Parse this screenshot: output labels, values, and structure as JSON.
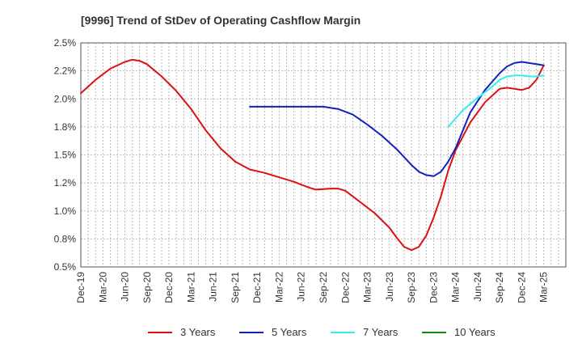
{
  "chart_data": {
    "type": "line",
    "title": "[9996]  Trend of StDev of Operating Cashflow Margin",
    "xlabel": "",
    "ylabel": "",
    "ylim": [
      0.5,
      2.5
    ],
    "yticks": [
      "0.5%",
      "0.8%",
      "1.0%",
      "1.2%",
      "1.5%",
      "1.8%",
      "2.0%",
      "2.2%",
      "2.5%"
    ],
    "ytick_values": [
      0.5,
      0.75,
      1.0,
      1.25,
      1.5,
      1.75,
      2.0,
      2.25,
      2.5
    ],
    "categories": [
      "Dec-19",
      "Mar-20",
      "Jun-20",
      "Sep-20",
      "Dec-20",
      "Mar-21",
      "Jun-21",
      "Sep-21",
      "Dec-21",
      "Mar-22",
      "Jun-22",
      "Sep-22",
      "Dec-22",
      "Mar-23",
      "Jun-23",
      "Sep-23",
      "Dec-23",
      "Mar-24",
      "Jun-24",
      "Sep-24",
      "Dec-24",
      "Mar-25"
    ],
    "x_range": [
      0,
      66
    ],
    "grid": true,
    "legend_position": "bottom",
    "series": [
      {
        "name": "3 Years",
        "color": "#dd1111",
        "points": [
          [
            0,
            2.05
          ],
          [
            2,
            2.17
          ],
          [
            4,
            2.27
          ],
          [
            6,
            2.33
          ],
          [
            7,
            2.35
          ],
          [
            8,
            2.34
          ],
          [
            9,
            2.31
          ],
          [
            11,
            2.2
          ],
          [
            13,
            2.07
          ],
          [
            15,
            1.91
          ],
          [
            17,
            1.72
          ],
          [
            19,
            1.56
          ],
          [
            21,
            1.44
          ],
          [
            23,
            1.37
          ],
          [
            25,
            1.34
          ],
          [
            27,
            1.3
          ],
          [
            29,
            1.26
          ],
          [
            31,
            1.21
          ],
          [
            32,
            1.19
          ],
          [
            34,
            1.2
          ],
          [
            35,
            1.2
          ],
          [
            36,
            1.18
          ],
          [
            38,
            1.08
          ],
          [
            40,
            0.98
          ],
          [
            42,
            0.85
          ],
          [
            43,
            0.76
          ],
          [
            44,
            0.68
          ],
          [
            45,
            0.65
          ],
          [
            46,
            0.68
          ],
          [
            47,
            0.78
          ],
          [
            48,
            0.94
          ],
          [
            49,
            1.13
          ],
          [
            50,
            1.36
          ],
          [
            51,
            1.54
          ],
          [
            53,
            1.79
          ],
          [
            55,
            1.97
          ],
          [
            57,
            2.09
          ],
          [
            58,
            2.1
          ],
          [
            59,
            2.09
          ],
          [
            60,
            2.08
          ],
          [
            61,
            2.1
          ],
          [
            62,
            2.17
          ],
          [
            63,
            2.3
          ]
        ]
      },
      {
        "name": "5 Years",
        "color": "#1122bb",
        "points": [
          [
            23,
            1.93
          ],
          [
            25,
            1.93
          ],
          [
            27,
            1.93
          ],
          [
            29,
            1.93
          ],
          [
            31,
            1.93
          ],
          [
            33,
            1.93
          ],
          [
            35,
            1.91
          ],
          [
            37,
            1.86
          ],
          [
            39,
            1.77
          ],
          [
            41,
            1.67
          ],
          [
            43,
            1.55
          ],
          [
            45,
            1.41
          ],
          [
            46,
            1.35
          ],
          [
            47,
            1.32
          ],
          [
            48,
            1.31
          ],
          [
            49,
            1.35
          ],
          [
            50,
            1.44
          ],
          [
            51,
            1.56
          ],
          [
            53,
            1.88
          ],
          [
            55,
            2.08
          ],
          [
            57,
            2.23
          ],
          [
            58,
            2.29
          ],
          [
            59,
            2.32
          ],
          [
            60,
            2.33
          ],
          [
            61,
            2.32
          ],
          [
            62,
            2.31
          ],
          [
            63,
            2.3
          ]
        ]
      },
      {
        "name": "7 Years",
        "color": "#33eeee",
        "points": [
          [
            50,
            1.75
          ],
          [
            52,
            1.9
          ],
          [
            54,
            2.01
          ],
          [
            56,
            2.11
          ],
          [
            57,
            2.17
          ],
          [
            58,
            2.2
          ],
          [
            59,
            2.21
          ],
          [
            60,
            2.21
          ],
          [
            61,
            2.2
          ],
          [
            62,
            2.2
          ],
          [
            63,
            2.21
          ]
        ]
      },
      {
        "name": "10 Years",
        "color": "#118811",
        "points": []
      }
    ]
  }
}
